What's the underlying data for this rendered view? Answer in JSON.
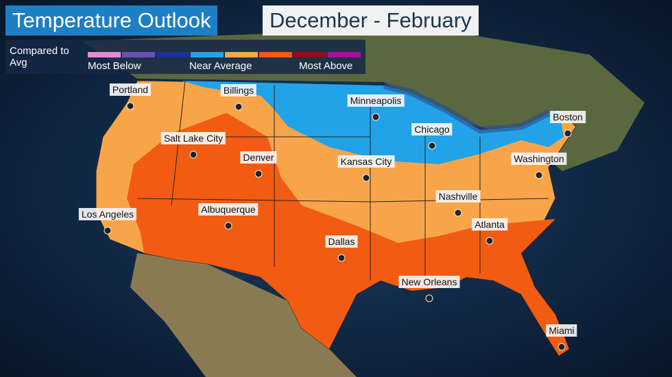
{
  "header": {
    "title": "Temperature Outlook",
    "period": "December - February"
  },
  "legend": {
    "label": "Compared to Avg",
    "colors": [
      "#e58bd0",
      "#6a4fb0",
      "#1c2f9c",
      "#22a3e8",
      "#f8a54a",
      "#f25c12",
      "#8a0f1f",
      "#a0139a"
    ],
    "labels": [
      "Most Below",
      "Near Average",
      "Most Above"
    ]
  },
  "cities": [
    "Portland",
    "Billings",
    "Minneapolis",
    "Boston",
    "Chicago",
    "Salt Lake City",
    "Denver",
    "Kansas City",
    "Washington",
    "Nashville",
    "Los Angeles",
    "Albuquerque",
    "Atlanta",
    "Dallas",
    "New Orleans",
    "Miami"
  ]
}
